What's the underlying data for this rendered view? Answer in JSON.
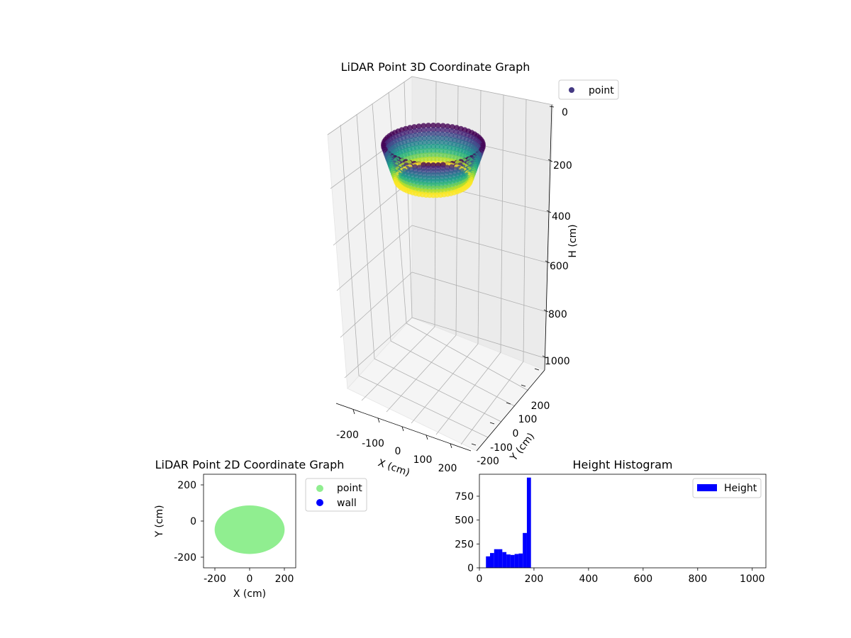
{
  "chart_data": [
    {
      "type": "scatter",
      "title": "LiDAR Point 3D Coordinate Graph",
      "xlabel": "X (cm)",
      "ylabel": "Y (cm)",
      "zlabel": "H (cm)",
      "x_ticks": [
        "-200",
        "-100",
        "0",
        "100",
        "200"
      ],
      "y_ticks": [
        "-200",
        "-100",
        "0",
        "100",
        "200"
      ],
      "z_ticks": [
        "0",
        "200",
        "400",
        "600",
        "800",
        "1000"
      ],
      "xlim": [
        -250,
        250
      ],
      "ylim": [
        -250,
        250
      ],
      "zlim": [
        0,
        1000
      ],
      "z_inverted": true,
      "grid": true,
      "legend": {
        "entries": [
          "point"
        ],
        "placement": "top-right"
      },
      "colormap": "viridis",
      "shape": {
        "description_values": "bowl of points, elliptical in X/Y, heights 0-200",
        "x_range": [
          -200,
          200
        ],
        "y_range": [
          -190,
          90
        ],
        "h_range": [
          20,
          195
        ]
      }
    },
    {
      "type": "scatter",
      "title": "LiDAR Point 2D Coordinate Graph",
      "xlabel": "X (cm)",
      "ylabel": "Y (cm)",
      "x_ticks": [
        "-200",
        "0",
        "200"
      ],
      "y_ticks": [
        "200",
        "0",
        "-200"
      ],
      "xlim": [
        -270,
        270
      ],
      "ylim": [
        -270,
        270
      ],
      "legend": {
        "entries": [
          "point",
          "wall"
        ],
        "placement": "outside-right"
      },
      "series": [
        {
          "name": "point",
          "color": "#90ee90",
          "region": {
            "cx": 0,
            "cy": -50,
            "rx": 205,
            "ry": 140
          }
        },
        {
          "name": "wall",
          "color": "#0000ff",
          "points": []
        }
      ]
    },
    {
      "type": "bar",
      "title": "Height Histogram",
      "xlabel": "",
      "ylabel": "",
      "x_ticks": [
        "0",
        "200",
        "400",
        "600",
        "800",
        "1000"
      ],
      "y_ticks": [
        "0",
        "250",
        "500",
        "750"
      ],
      "xlim": [
        0,
        1050
      ],
      "ylim": [
        0,
        980
      ],
      "legend": {
        "entries": [
          "Height"
        ],
        "placement": "top-right"
      },
      "color": "#0000ff",
      "bins": [
        [
          24,
          39,
          120
        ],
        [
          39,
          54,
          155
        ],
        [
          54,
          69,
          195
        ],
        [
          69,
          84,
          195
        ],
        [
          84,
          99,
          165
        ],
        [
          99,
          114,
          140
        ],
        [
          114,
          129,
          135
        ],
        [
          129,
          144,
          145
        ],
        [
          144,
          159,
          150
        ],
        [
          159,
          174,
          365
        ],
        [
          174,
          189,
          945
        ]
      ]
    }
  ]
}
